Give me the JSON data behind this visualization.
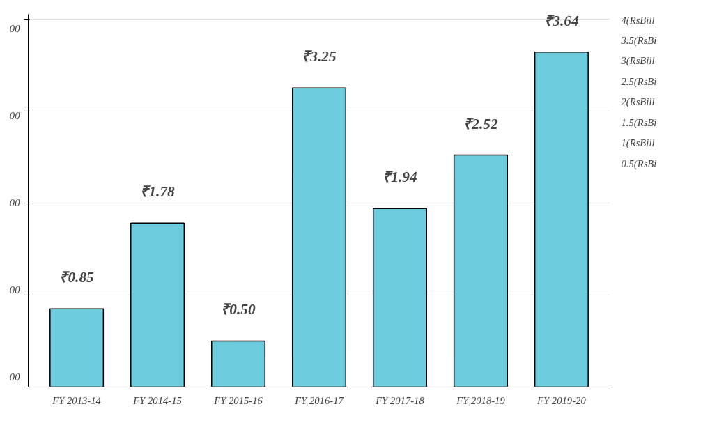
{
  "chart_data": {
    "type": "bar",
    "categories": [
      "FY 2013-14",
      "FY 2014-15",
      "FY 2015-16",
      "FY 2016-17",
      "FY 2017-18",
      "FY 2018-19",
      "FY 2019-20"
    ],
    "values": [
      0.85,
      1.78,
      0.5,
      3.25,
      1.94,
      2.52,
      3.64
    ],
    "value_labels": [
      "₹0.85",
      "₹1.78",
      "₹0.50",
      "₹3.25",
      "₹1.94",
      "₹2.52",
      "₹3.64"
    ],
    "color": "#6ccbdc",
    "ylim": [
      0,
      4.05
    ],
    "yticks": [
      {
        "value": 0,
        "label": null
      },
      {
        "value": 1,
        "label": null
      },
      {
        "value": 2,
        "label": null
      },
      {
        "value": 3,
        "label": null
      },
      {
        "value": 4,
        "label": null
      }
    ],
    "tick_labels": "x",
    "grid": "y",
    "annotations": [
      "00",
      "00",
      "00",
      "00",
      "00",
      "4(RsBill",
      "3.5(RsBi",
      "3(RsBill",
      "2.5(RsBi",
      "2(RsBill",
      "1.5(RsBi",
      "1(RsBill",
      "0.5(RsBi"
    ]
  }
}
